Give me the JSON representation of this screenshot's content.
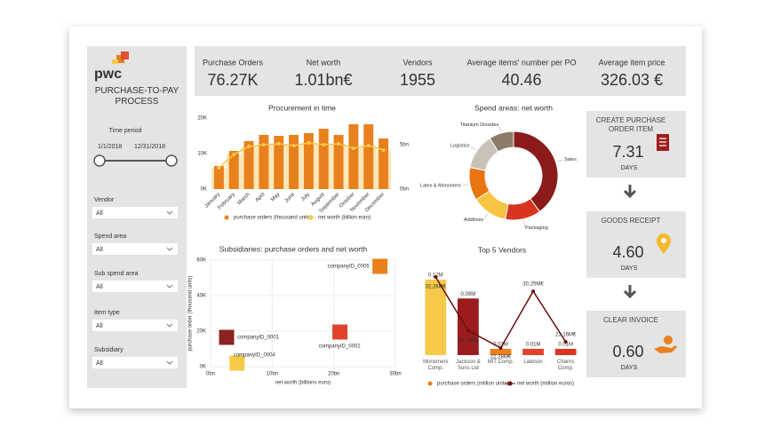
{
  "sidebar": {
    "logo": "pwc",
    "title": "PURCHASE-TO-PAY PROCESS",
    "time_label": "Time period",
    "date_from": "1/1/2018",
    "date_to": "12/31/2018",
    "filters": [
      {
        "label": "Vendor",
        "value": "All"
      },
      {
        "label": "Spend area",
        "value": "All"
      },
      {
        "label": "Sub spend area",
        "value": "All"
      },
      {
        "label": "Item type",
        "value": "All"
      },
      {
        "label": "Subsidiary",
        "value": "All"
      }
    ]
  },
  "kpis": [
    {
      "label": "Purchase Orders",
      "value": "76.27K"
    },
    {
      "label": "Net worth",
      "value": "1.01bn€"
    },
    {
      "label": "Vendors",
      "value": 1955
    },
    {
      "label": "Average items' number per PO",
      "value": 40.46
    },
    {
      "label": "Average item price",
      "value": "326.03 €"
    }
  ],
  "process": [
    {
      "title": "CREATE PURCHASE ORDER ITEM",
      "value": 7.31,
      "unit": "DAYS"
    },
    {
      "title": "GOODS RECEIPT",
      "value": "4.60",
      "unit": "DAYS"
    },
    {
      "title": "CLEAR INVOICE",
      "value": "0.60",
      "unit": "DAYS"
    }
  ],
  "chart_data": [
    {
      "type": "bar",
      "title": "Procurement in time",
      "categories": [
        "January",
        "February",
        "March",
        "April",
        "May",
        "June",
        "July",
        "August",
        "September",
        "October",
        "November",
        "December"
      ],
      "series": [
        {
          "name": "purchase orders (thousand units)",
          "color": "#e8801e",
          "values": [
            6.5,
            10.75,
            13.5,
            15.25,
            15,
            15.25,
            15.75,
            17,
            15.25,
            18.25,
            18.25,
            14.25
          ]
        },
        {
          "name": "net worth (billion euro)",
          "type": "line",
          "axis": "y2",
          "color": "#f7c948",
          "values": [
            2.4,
            3.9,
            4.8,
            5.0,
            5.1,
            4.9,
            5.2,
            5.0,
            5.1,
            4.6,
            4.9,
            4.4
          ]
        }
      ],
      "ylim": [
        0,
        20
      ],
      "yticks": [
        {
          "value": 0,
          "label": "0K"
        },
        {
          "value": 10,
          "label": "10K"
        },
        {
          "value": 20,
          "label": "20K"
        }
      ],
      "y2lim": [
        0,
        8
      ],
      "y2ticks": [
        {
          "value": 0,
          "label": "0bn"
        },
        {
          "value": 5,
          "label": "5bn"
        }
      ]
    },
    {
      "type": "donut",
      "title": "Spend areas: net worth",
      "categories": [
        "Sales",
        "Packaging",
        "Additives",
        "Latex & Monomers",
        "Logistics",
        "Titanium Dioxides"
      ],
      "values": [
        40,
        13,
        13,
        12,
        13,
        9
      ],
      "colors": [
        "#8b1a1a",
        "#d9341f",
        "#f7c542",
        "#e8750f",
        "#c9c2b6",
        "#8c7b68"
      ]
    },
    {
      "type": "scatter",
      "title": "Subsidiaries: purchase orders and net worth",
      "x_label": "net worth (billions euro)",
      "y_label": "purchase order (thousand units)",
      "xlim": [
        0,
        30
      ],
      "xticks": [
        {
          "value": 0,
          "label": "0bn"
        },
        {
          "value": 10,
          "label": "10bn"
        },
        {
          "value": 20,
          "label": "20bn"
        },
        {
          "value": 30,
          "label": "30bn"
        }
      ],
      "ylim": [
        0,
        60
      ],
      "yticks": [
        {
          "value": 0,
          "label": "0K"
        },
        {
          "value": 20,
          "label": "20K"
        },
        {
          "value": 40,
          "label": "40K"
        },
        {
          "value": 60,
          "label": "60K"
        }
      ],
      "grid": true,
      "points": [
        {
          "label": "companyID_0001",
          "x": 2.6,
          "y": 16.5,
          "color": "#8b2323"
        },
        {
          "label": "companyID_0004",
          "x": 4.3,
          "y": 2,
          "color": "#f7c948"
        },
        {
          "label": "companyID_0002",
          "x": 21,
          "y": 19.5,
          "color": "#e0412b"
        },
        {
          "label": "companyID_0005",
          "x": 27.5,
          "y": 56.5,
          "color": "#e8801e"
        }
      ]
    },
    {
      "type": "bar",
      "title": "Top 5 Vendors",
      "categories": [
        "Monomers Comp.",
        "Jackson & Sons Ltd",
        "MIT Comp.",
        "Lateson",
        "Charns Comp."
      ],
      "series": [
        {
          "name": "purchase orders (million units)",
          "color": "#e8801e",
          "colors": [
            "#f7c948",
            "#9b1c1c",
            "#e8801e",
            "#e0412b",
            "#d9341f"
          ],
          "values": [
            0.12,
            0.09,
            0.01,
            0.01,
            0.01
          ],
          "value_labels": [
            "0.12M",
            "0.09M",
            "0.01M",
            "0.01M",
            "0.01M"
          ]
        },
        {
          "name": "net worth (million euros)",
          "type": "line",
          "color": "#6b0f0f",
          "values": [
            32.26,
            24.74,
            22.28,
            30.25,
            23.16
          ],
          "value_labels": [
            "32.26M€",
            "24.74M€",
            "22.28M€",
            "30.25M€",
            "23.16M€"
          ]
        }
      ]
    }
  ]
}
